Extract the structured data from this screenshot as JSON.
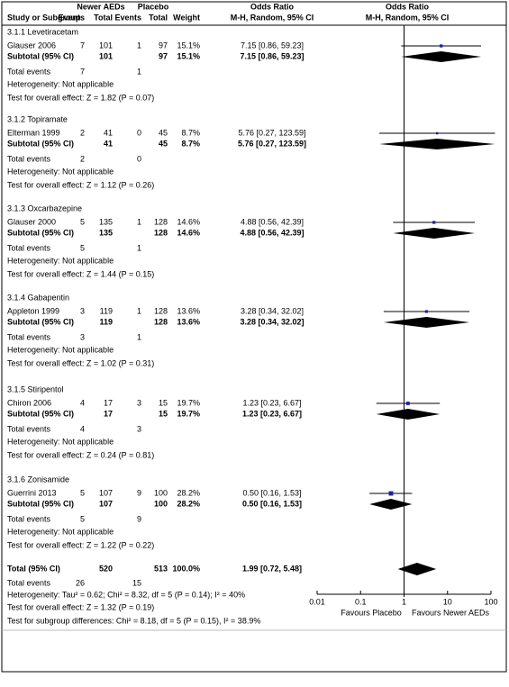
{
  "chart_data": {
    "type": "forest",
    "header": {
      "group1": "Newer AEDs",
      "group2": "Placebo",
      "or_table": "Odds Ratio",
      "or_plot": "Odds Ratio",
      "study": "Study or Subgroup",
      "events1": "Events",
      "total1": "Total",
      "events2": "Events",
      "total2": "Total",
      "weight": "Weight",
      "method_table": "M-H, Random, 95% CI",
      "method_plot": "M-H, Random, 95% CI"
    },
    "groups": [
      {
        "title": "3.1.1 Levetiracetam",
        "study": {
          "name": "Glauser 2006",
          "events1": 7,
          "total1": 101,
          "events2": 1,
          "total2": 97,
          "weight": {
            "value": 15.1,
            "label": "15.1%"
          },
          "or": 7.15,
          "lo": 0.86,
          "hi": 59.23,
          "ci_label": "7.15 [0.86, 59.23]"
        },
        "subtotal": {
          "label": "Subtotal (95% CI)",
          "total1": 101,
          "total2": 97,
          "weight": {
            "value": 15.1,
            "label": "15.1%"
          },
          "or": 7.15,
          "lo": 0.86,
          "hi": 59.23,
          "ci_label": "7.15 [0.86, 59.23]"
        },
        "events": {
          "label": "Total events",
          "events1": 7,
          "events2": 1
        },
        "heterogeneity": "Heterogeneity: Not applicable",
        "test": "Test for overall effect: Z = 1.82 (P = 0.07)"
      },
      {
        "title": "3.1.2 Topiramate",
        "study": {
          "name": "Elterman 1999",
          "events1": 2,
          "total1": 41,
          "events2": 0,
          "total2": 45,
          "weight": {
            "value": 8.7,
            "label": "8.7%"
          },
          "or": 5.76,
          "lo": 0.27,
          "hi": 123.59,
          "ci_label": "5.76 [0.27, 123.59]"
        },
        "subtotal": {
          "label": "Subtotal (95% CI)",
          "total1": 41,
          "total2": 45,
          "weight": {
            "value": 8.7,
            "label": "8.7%"
          },
          "or": 5.76,
          "lo": 0.27,
          "hi": 123.59,
          "ci_label": "5.76 [0.27, 123.59]"
        },
        "events": {
          "label": "Total events",
          "events1": 2,
          "events2": 0
        },
        "heterogeneity": "Heterogeneity: Not applicable",
        "test": "Test for overall effect: Z = 1.12 (P = 0.26)"
      },
      {
        "title": "3.1.3 Oxcarbazepine",
        "study": {
          "name": "Glauser 2000",
          "events1": 5,
          "total1": 135,
          "events2": 1,
          "total2": 128,
          "weight": {
            "value": 14.6,
            "label": "14.6%"
          },
          "or": 4.88,
          "lo": 0.56,
          "hi": 42.39,
          "ci_label": "4.88 [0.56, 42.39]"
        },
        "subtotal": {
          "label": "Subtotal (95% CI)",
          "total1": 135,
          "total2": 128,
          "weight": {
            "value": 14.6,
            "label": "14.6%"
          },
          "or": 4.88,
          "lo": 0.56,
          "hi": 42.39,
          "ci_label": "4.88 [0.56, 42.39]"
        },
        "events": {
          "label": "Total events",
          "events1": 5,
          "events2": 1
        },
        "heterogeneity": "Heterogeneity: Not applicable",
        "test": "Test for overall effect: Z = 1.44 (P = 0.15)"
      },
      {
        "title": "3.1.4 Gabapentin",
        "study": {
          "name": "Appleton 1999",
          "events1": 3,
          "total1": 119,
          "events2": 1,
          "total2": 128,
          "weight": {
            "value": 13.6,
            "label": "13.6%"
          },
          "or": 3.28,
          "lo": 0.34,
          "hi": 32.02,
          "ci_label": "3.28 [0.34, 32.02]"
        },
        "subtotal": {
          "label": "Subtotal (95% CI)",
          "total1": 119,
          "total2": 128,
          "weight": {
            "value": 13.6,
            "label": "13.6%"
          },
          "or": 3.28,
          "lo": 0.34,
          "hi": 32.02,
          "ci_label": "3.28 [0.34, 32.02]"
        },
        "events": {
          "label": "Total events",
          "events1": 3,
          "events2": 1
        },
        "heterogeneity": "Heterogeneity: Not applicable",
        "test": "Test for overall effect: Z = 1.02 (P = 0.31)"
      },
      {
        "title": "3.1.5 Stiripentol",
        "study": {
          "name": "Chiron 2006",
          "events1": 4,
          "total1": 17,
          "events2": 3,
          "total2": 15,
          "weight": {
            "value": 19.7,
            "label": "19.7%"
          },
          "or": 1.23,
          "lo": 0.23,
          "hi": 6.67,
          "ci_label": "1.23 [0.23, 6.67]"
        },
        "subtotal": {
          "label": "Subtotal (95% CI)",
          "total1": 17,
          "total2": 15,
          "weight": {
            "value": 19.7,
            "label": "19.7%"
          },
          "or": 1.23,
          "lo": 0.23,
          "hi": 6.67,
          "ci_label": "1.23 [0.23, 6.67]"
        },
        "events": {
          "label": "Total events",
          "events1": 4,
          "events2": 3
        },
        "heterogeneity": "Heterogeneity: Not applicable",
        "test": "Test for overall effect: Z = 0.24 (P = 0.81)"
      },
      {
        "title": "3.1.6 Zonisamide",
        "study": {
          "name": "Guerrini 2013",
          "events1": 5,
          "total1": 107,
          "events2": 9,
          "total2": 100,
          "weight": {
            "value": 28.2,
            "label": "28.2%"
          },
          "or": 0.5,
          "lo": 0.16,
          "hi": 1.53,
          "ci_label": "0.50 [0.16, 1.53]"
        },
        "subtotal": {
          "label": "Subtotal (95% CI)",
          "total1": 107,
          "total2": 100,
          "weight": {
            "value": 28.2,
            "label": "28.2%"
          },
          "or": 0.5,
          "lo": 0.16,
          "hi": 1.53,
          "ci_label": "0.50 [0.16, 1.53]"
        },
        "events": {
          "label": "Total events",
          "events1": 5,
          "events2": 9
        },
        "heterogeneity": "Heterogeneity: Not applicable",
        "test": "Test for overall effect: Z = 1.22 (P = 0.22)"
      }
    ],
    "total": {
      "label": "Total (95% CI)",
      "total1": 520,
      "total2": 513,
      "weight": {
        "value": 100,
        "label": "100.0%"
      },
      "or": 1.99,
      "lo": 0.72,
      "hi": 5.48,
      "ci_label": "1.99 [0.72, 5.48]"
    },
    "total_events": {
      "label": "Total events",
      "events1": 26,
      "events2": 15
    },
    "heterogeneity": "Heterogeneity: Tau² = 0.62; Chi² = 8.32, df = 5 (P = 0.14); I² = 40%",
    "test_overall": "Test for overall effect: Z = 1.32 (P = 0.19)",
    "test_subgroup": "Test for subgroup differences: Chi² = 8.18, df = 5 (P = 0.15), I² = 38.9%",
    "log_x": true,
    "xlim": [
      0.01,
      100
    ],
    "xticks": [
      0.01,
      0.1,
      1,
      10,
      100
    ],
    "xlabel_left": "Favours Placebo",
    "xlabel_right": "Favours Newer AEDs",
    "square_color": "#1f1fa8",
    "diamond_color": "#000000"
  }
}
